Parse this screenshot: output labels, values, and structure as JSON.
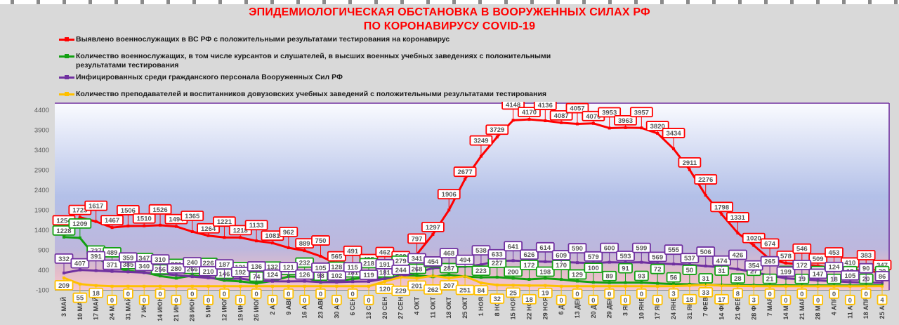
{
  "title": {
    "line1": "ЭПИДЕМИОЛОГИЧЕСКАЯ ОБСТАНОВКА В ВООРУЖЕННЫХ СИЛАХ РФ",
    "line2": "ПО КОРОНАВИРУСУ COVID-19",
    "color": "#ff0000"
  },
  "legend": [
    {
      "label": "Выявлено военнослужащих в ВС РФ с положительными результатами тестирования на коронавирус",
      "color": "#ff0000"
    },
    {
      "label": "Количество военнослужащих, в том числе курсантов и слушателей, в высших военных учебных заведениях с положительными результатами тестирования",
      "color": "#12a012"
    },
    {
      "label": "Инфицированных среди гражданского персонала Вооруженных Сил РФ",
      "color": "#7030a0"
    },
    {
      "label": "Количество преподавателей и воспитанников довузовских учебных заведений с положительными результатами тестирования",
      "color": "#ffc000"
    }
  ],
  "chart_data": {
    "type": "line",
    "title": "ЭПИДЕМИОЛОГИЧЕСКАЯ ОБСТАНОВКА В ВООРУЖЕННЫХ СИЛАХ РФ ПО КОРОНАВИРУСУ COVID-19",
    "categories": [
      "3 МАЙ",
      "10 МАЙ",
      "17 МАЙ",
      "24 МАЙ",
      "31 МАЙ",
      "7 ИЮН",
      "14 ИЮН",
      "21 ИЮН",
      "28 ИЮН",
      "5 ИЮЛ",
      "12 ИЮЛ",
      "19 ИЮЛ",
      "26 ИЮЛ",
      "2 АВГ",
      "9 АВГ",
      "16 АВГ",
      "23 АВГ",
      "30 АВГ",
      "6 СЕН",
      "13 СЕН",
      "20 СЕН",
      "27 СЕН",
      "4 ОКТ",
      "11 ОКТ",
      "18 ОКТ",
      "25 ОКТ",
      "1 НОЯ",
      "8 НОЯ",
      "15 НОЯ",
      "22 НОЯ",
      "29 НОЯ",
      "6 ДЕК",
      "13 ДЕК",
      "20 ДЕК",
      "29 ДЕК",
      "3 ЯНВ",
      "10 ЯНВ",
      "17 ЯНВ",
      "24 ЯНВ",
      "31 ЯНВ",
      "7 ФЕВ",
      "14 ФЕВ",
      "21 ФЕВ",
      "28 ФЕВ",
      "7 МАР",
      "14 МАР",
      "21 МАР",
      "28 МАР",
      "4 АПР",
      "11 АПР",
      "18 АПР",
      "25 АПР"
    ],
    "series": [
      {
        "name": "Выявлено военнослужащих в ВС РФ с положительными результатами тестирования на коронавирус",
        "color": "#ff0000",
        "values": [
          1254,
          1723,
          1617,
          1467,
          1506,
          1510,
          1526,
          1494,
          1365,
          1264,
          1221,
          1218,
          1133,
          1081,
          962,
          889,
          750,
          565,
          491,
          495,
          462,
          569,
          797,
          1297,
          1906,
          2677,
          3249,
          3729,
          4148,
          4170,
          4136,
          4087,
          4057,
          4070,
          3953,
          3963,
          3957,
          3820,
          3434,
          2911,
          2276,
          1798,
          1331,
          1020,
          674,
          578,
          546,
          509,
          453,
          410,
          383,
          347
        ]
      },
      {
        "name": "Количество военнослужащих, в том числе курсантов и слушателей, в высших военных учебных заведениях с положительными результатами тестирования",
        "color": "#12a012",
        "values": [
          1228,
          1209,
          727,
          489,
          385,
          347,
          256,
          201,
          266,
          226,
          146,
          121,
          74,
          132,
          244,
          232,
          98,
          128,
          181,
          218,
          181,
          279,
          268,
          237,
          287,
          243,
          223,
          227,
          200,
          172,
          198,
          170,
          129,
          100,
          89,
          91,
          93,
          72,
          56,
          50,
          31,
          31,
          28,
          27,
          21,
          24,
          19,
          20,
          18,
          19,
          20,
          20
        ]
      },
      {
        "name": "Инфицированных среди гражданского персонала Вооруженных Сил РФ",
        "color": "#7030a0",
        "values": [
          332,
          407,
          391,
          371,
          359,
          340,
          310,
          280,
          240,
          210,
          187,
          192,
          136,
          124,
          121,
          126,
          105,
          102,
          115,
          119,
          191,
          244,
          341,
          454,
          468,
          494,
          538,
          633,
          641,
          626,
          614,
          609,
          590,
          579,
          600,
          593,
          599,
          569,
          555,
          537,
          506,
          474,
          426,
          354,
          265,
          199,
          172,
          147,
          124,
          105,
          90,
          86
        ]
      },
      {
        "name": "Количество преподавателей и воспитанников довузовских учебных заведений с положительными результатами тестирования",
        "color": "#ffc000",
        "values": [
          209,
          55,
          18,
          0,
          0,
          0,
          0,
          0,
          0,
          0,
          0,
          0,
          0,
          0,
          0,
          0,
          0,
          0,
          0,
          0,
          120,
          229,
          201,
          262,
          207,
          251,
          84,
          32,
          25,
          18,
          19,
          0,
          0,
          0,
          0,
          0,
          0,
          0,
          3,
          18,
          33,
          17,
          8,
          3,
          0,
          0,
          0,
          0,
          0,
          0,
          0,
          4
        ]
      }
    ],
    "ylim": [
      -100,
      4400
    ],
    "yticks": [
      4400,
      3900,
      3400,
      2900,
      2400,
      1900,
      1400,
      900,
      400,
      -100
    ],
    "grid": false,
    "legend_position": "top-left",
    "axis_text_color": "#595959",
    "label_text_color": "#595959",
    "plot_border_color": "#7030a0",
    "plot_bg_gradient": [
      "#fafbff",
      "#b3c0e8",
      "#bdb7dd",
      "#e3bcca",
      "#f6c7ce"
    ]
  }
}
